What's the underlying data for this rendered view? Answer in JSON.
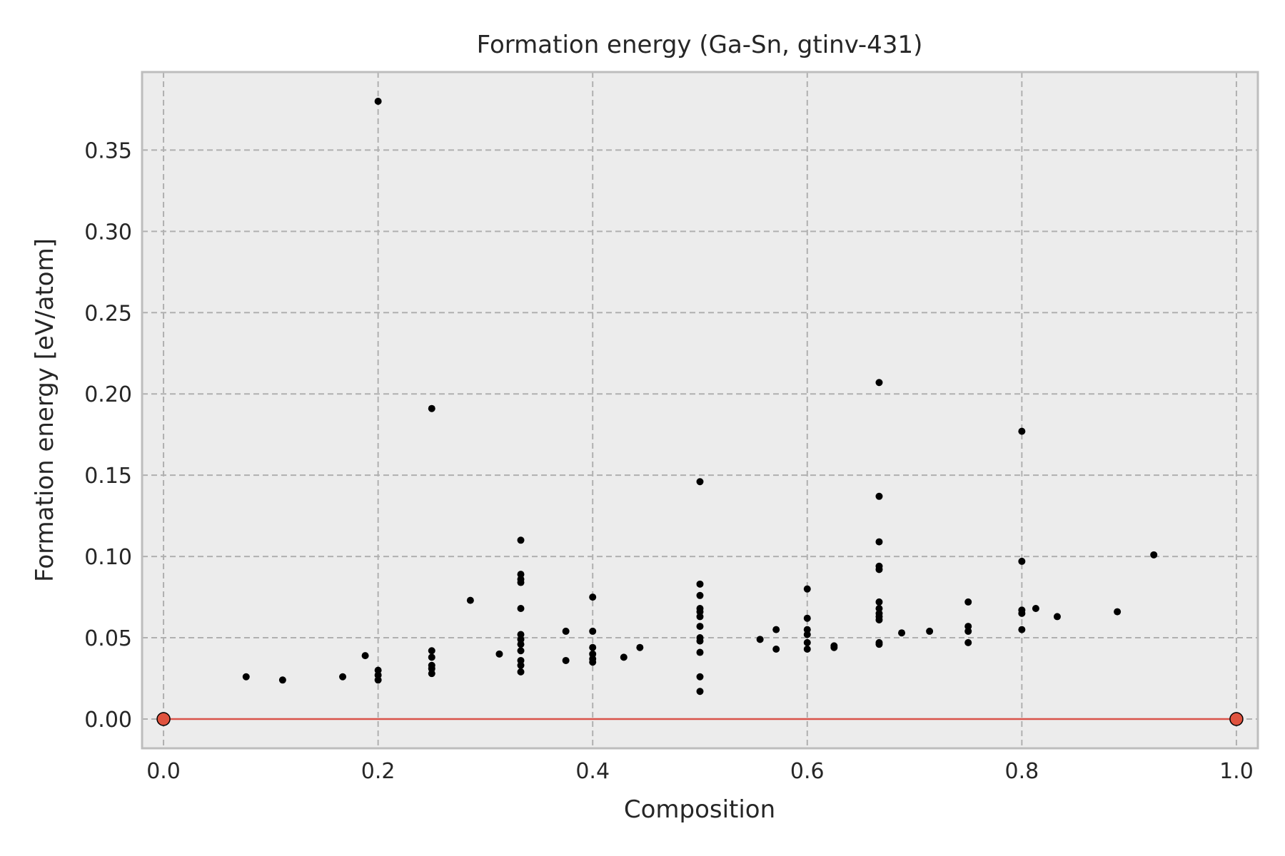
{
  "chart_data": {
    "type": "scatter",
    "title": "Formation energy (Ga-Sn, gtinv-431)",
    "xlabel": "Composition",
    "ylabel": "Formation energy [eV/atom]",
    "xlim": [
      -0.02,
      1.02
    ],
    "ylim": [
      -0.018,
      0.398
    ],
    "xticks": [
      0.0,
      0.2,
      0.4,
      0.6,
      0.8,
      1.0
    ],
    "xtick_labels": [
      "0.0",
      "0.2",
      "0.4",
      "0.6",
      "0.8",
      "1.0"
    ],
    "yticks": [
      0.0,
      0.05,
      0.1,
      0.15,
      0.2,
      0.25,
      0.3,
      0.35
    ],
    "ytick_labels": [
      "0.00",
      "0.05",
      "0.10",
      "0.15",
      "0.20",
      "0.25",
      "0.30",
      "0.35"
    ],
    "grid": true,
    "colors": {
      "background": "#ececec",
      "grid": "#b0b0b0",
      "points": "#000000",
      "hull_line": "#d9534a",
      "hull_points": "#e0533f",
      "frame": "#bdbdbd"
    },
    "series": [
      {
        "name": "structures",
        "points": [
          [
            0.077,
            0.026
          ],
          [
            0.111,
            0.024
          ],
          [
            0.167,
            0.026
          ],
          [
            0.188,
            0.039
          ],
          [
            0.2,
            0.38
          ],
          [
            0.2,
            0.03
          ],
          [
            0.2,
            0.027
          ],
          [
            0.2,
            0.024
          ],
          [
            0.25,
            0.191
          ],
          [
            0.25,
            0.042
          ],
          [
            0.25,
            0.038
          ],
          [
            0.25,
            0.033
          ],
          [
            0.25,
            0.031
          ],
          [
            0.25,
            0.028
          ],
          [
            0.286,
            0.073
          ],
          [
            0.313,
            0.04
          ],
          [
            0.333,
            0.11
          ],
          [
            0.333,
            0.089
          ],
          [
            0.333,
            0.086
          ],
          [
            0.333,
            0.084
          ],
          [
            0.333,
            0.068
          ],
          [
            0.333,
            0.052
          ],
          [
            0.333,
            0.049
          ],
          [
            0.333,
            0.046
          ],
          [
            0.333,
            0.042
          ],
          [
            0.333,
            0.036
          ],
          [
            0.333,
            0.033
          ],
          [
            0.333,
            0.029
          ],
          [
            0.375,
            0.054
          ],
          [
            0.375,
            0.036
          ],
          [
            0.4,
            0.075
          ],
          [
            0.4,
            0.054
          ],
          [
            0.4,
            0.044
          ],
          [
            0.4,
            0.04
          ],
          [
            0.4,
            0.037
          ],
          [
            0.4,
            0.035
          ],
          [
            0.429,
            0.038
          ],
          [
            0.444,
            0.044
          ],
          [
            0.5,
            0.146
          ],
          [
            0.5,
            0.083
          ],
          [
            0.5,
            0.076
          ],
          [
            0.5,
            0.068
          ],
          [
            0.5,
            0.066
          ],
          [
            0.5,
            0.063
          ],
          [
            0.5,
            0.057
          ],
          [
            0.5,
            0.05
          ],
          [
            0.5,
            0.048
          ],
          [
            0.5,
            0.041
          ],
          [
            0.5,
            0.026
          ],
          [
            0.5,
            0.017
          ],
          [
            0.556,
            0.049
          ],
          [
            0.571,
            0.055
          ],
          [
            0.571,
            0.043
          ],
          [
            0.6,
            0.08
          ],
          [
            0.6,
            0.062
          ],
          [
            0.6,
            0.055
          ],
          [
            0.6,
            0.052
          ],
          [
            0.6,
            0.047
          ],
          [
            0.6,
            0.043
          ],
          [
            0.625,
            0.045
          ],
          [
            0.625,
            0.044
          ],
          [
            0.667,
            0.207
          ],
          [
            0.667,
            0.137
          ],
          [
            0.667,
            0.109
          ],
          [
            0.667,
            0.094
          ],
          [
            0.667,
            0.092
          ],
          [
            0.667,
            0.072
          ],
          [
            0.667,
            0.068
          ],
          [
            0.667,
            0.065
          ],
          [
            0.667,
            0.063
          ],
          [
            0.667,
            0.061
          ],
          [
            0.667,
            0.047
          ],
          [
            0.667,
            0.046
          ],
          [
            0.688,
            0.053
          ],
          [
            0.714,
            0.054
          ],
          [
            0.75,
            0.072
          ],
          [
            0.75,
            0.057
          ],
          [
            0.75,
            0.054
          ],
          [
            0.75,
            0.047
          ],
          [
            0.8,
            0.177
          ],
          [
            0.8,
            0.097
          ],
          [
            0.8,
            0.067
          ],
          [
            0.8,
            0.065
          ],
          [
            0.8,
            0.055
          ],
          [
            0.813,
            0.068
          ],
          [
            0.833,
            0.063
          ],
          [
            0.889,
            0.066
          ],
          [
            0.923,
            0.101
          ]
        ]
      },
      {
        "name": "convex hull",
        "points": [
          [
            0.0,
            0.0
          ],
          [
            1.0,
            0.0
          ]
        ]
      }
    ]
  }
}
